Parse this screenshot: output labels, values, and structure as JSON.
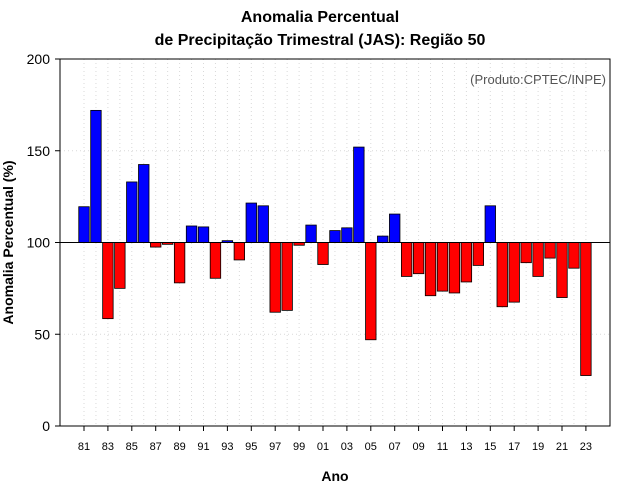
{
  "chart_data": {
    "type": "bar",
    "title": "Anomalia Percentual",
    "subtitle": "de Precipitação Trimestral (JAS): Região 50",
    "credit": "(Produto:CPTEC/INPE)",
    "xlabel": "Ano",
    "ylabel": "Anomalia Percentual (%)",
    "ylim": [
      0,
      200
    ],
    "yticks": [
      "0",
      "50",
      "100",
      "150",
      "200"
    ],
    "baseline": 100,
    "grid": true,
    "colors": {
      "above": "#0000ff",
      "below": "#ff0000"
    },
    "categories": [
      "81",
      "82",
      "83",
      "84",
      "85",
      "86",
      "87",
      "88",
      "89",
      "90",
      "91",
      "92",
      "93",
      "94",
      "95",
      "96",
      "97",
      "98",
      "99",
      "00",
      "01",
      "02",
      "03",
      "04",
      "05",
      "06",
      "07",
      "08",
      "09",
      "10",
      "11",
      "12",
      "13",
      "14",
      "15",
      "16",
      "17",
      "18",
      "19",
      "20",
      "21",
      "22",
      "23"
    ],
    "xticklabels": [
      "81",
      "83",
      "85",
      "87",
      "89",
      "91",
      "93",
      "95",
      "97",
      "99",
      "01",
      "03",
      "05",
      "07",
      "09",
      "11",
      "13",
      "15",
      "17",
      "19",
      "21",
      "23"
    ],
    "values": [
      119.5,
      172,
      58.5,
      75,
      133,
      142.5,
      97.5,
      99,
      78,
      109,
      108.5,
      80.5,
      101,
      90.5,
      121.5,
      120,
      62,
      63,
      98.5,
      109.5,
      88,
      106.5,
      108,
      152,
      47,
      103.5,
      115.5,
      81.5,
      83,
      71,
      73.5,
      72.5,
      78.5,
      87.5,
      120,
      65,
      67.5,
      89,
      81.5,
      91.5,
      70,
      86,
      27.5
    ]
  }
}
